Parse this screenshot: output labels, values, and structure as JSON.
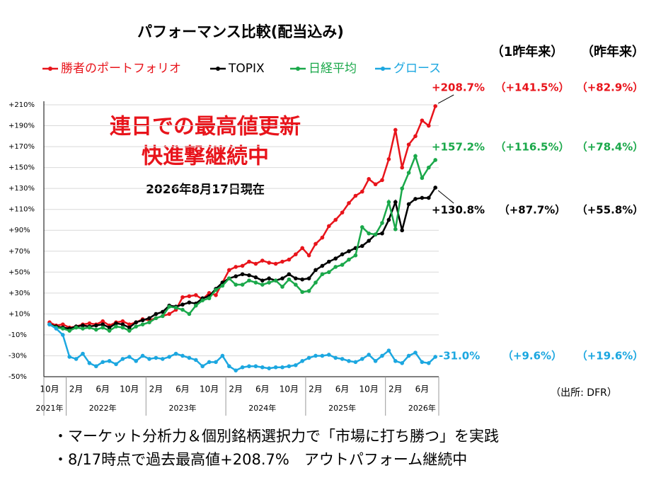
{
  "chart_data": {
    "type": "line",
    "title": "パフォーマンス比較(配当込み)",
    "column_headers": [
      "（1昨年来）",
      "（昨年来）"
    ],
    "annotations": [
      "連日での最高値更新",
      "快進撃継続中",
      "2026年8月17日現在"
    ],
    "source": "（出所: DFR）",
    "notes": [
      "・マーケット分析力＆個別銘柄選択力で「市場に打ち勝つ」を実践",
      "・8/17時点で過去最高値+208.7%　アウトパフォーム継続中"
    ],
    "categories": [
      "10月",
      null,
      null,
      null,
      "2月",
      null,
      null,
      null,
      "6月",
      null,
      null,
      null,
      "10月",
      null,
      null,
      null,
      "2月",
      null,
      null,
      null,
      "6月",
      null,
      null,
      null,
      "10月",
      null,
      null,
      null,
      "2月",
      null,
      null,
      null,
      "6月",
      null,
      null,
      null,
      "10月",
      null,
      null,
      null,
      "2月",
      null,
      null,
      null,
      "6月",
      null,
      null,
      null,
      "10月",
      null,
      null,
      null,
      "2月",
      null,
      null,
      null,
      "6月",
      null,
      null
    ],
    "category_groups": [
      "2021年",
      null,
      null,
      null,
      null,
      null,
      null,
      null,
      "2022年",
      null,
      null,
      null,
      null,
      null,
      null,
      null,
      null,
      null,
      null,
      null,
      "2023年",
      null,
      null,
      null,
      null,
      null,
      null,
      null,
      null,
      null,
      null,
      null,
      "2024年",
      null,
      null,
      null,
      null,
      null,
      null,
      null,
      null,
      null,
      null,
      null,
      "2025年",
      null,
      null,
      null,
      null,
      null,
      null,
      null,
      null,
      null,
      null,
      null,
      "2026年",
      null,
      null
    ],
    "ylim": [
      -50,
      210
    ],
    "yticks": [
      {
        "value": 210,
        "label": "+210%"
      },
      {
        "value": 190,
        "label": "+190%"
      },
      {
        "value": 170,
        "label": "+170%"
      },
      {
        "value": 150,
        "label": "+150%"
      },
      {
        "value": 130,
        "label": "+130%"
      },
      {
        "value": 110,
        "label": "+110%"
      },
      {
        "value": 90,
        "label": "+90%"
      },
      {
        "value": 70,
        "label": "+70%"
      },
      {
        "value": 50,
        "label": "+50%"
      },
      {
        "value": 30,
        "label": "+30%"
      },
      {
        "value": 10,
        "label": "+10%"
      },
      {
        "value": -10,
        "label": "-10%"
      },
      {
        "value": -30,
        "label": "-30%"
      },
      {
        "value": -50,
        "label": "-50%"
      }
    ],
    "grid": true,
    "series": [
      {
        "name": "勝者のポートフォリオ",
        "color": "#e8141b",
        "since_1yr": "（+141.5%）",
        "ytd": "（+82.9%）",
        "values": [
          2,
          -1,
          0,
          -3,
          -2,
          0,
          1,
          0,
          3,
          -1,
          2,
          3,
          0,
          2,
          5,
          4,
          6,
          8,
          10,
          14,
          26,
          27,
          28,
          24,
          30,
          28,
          40,
          52,
          55,
          56,
          60,
          58,
          61,
          59,
          58,
          60,
          62,
          67,
          73,
          66,
          77,
          83,
          94,
          100,
          107,
          116,
          123,
          127,
          139,
          134,
          138,
          158,
          186,
          150,
          172,
          180,
          195,
          190,
          208.7
        ],
        "value_labels": [
          null,
          null,
          null,
          null,
          null,
          null,
          null,
          null,
          null,
          null,
          null,
          null,
          null,
          null,
          null,
          null,
          null,
          null,
          null,
          null,
          null,
          null,
          null,
          null,
          null,
          null,
          null,
          null,
          null,
          null,
          null,
          null,
          null,
          null,
          null,
          null,
          null,
          null,
          null,
          null,
          null,
          null,
          null,
          null,
          null,
          null,
          null,
          null,
          null,
          null,
          null,
          null,
          null,
          null,
          null,
          null,
          null,
          null,
          "+208.7%"
        ]
      },
      {
        "name": "TOPIX",
        "color": "#000000",
        "since_1yr": "（+87.7%）",
        "ytd": "（+55.8%）",
        "values": [
          0,
          -2,
          -3,
          -4,
          -2,
          -1,
          -2,
          -1,
          0,
          -3,
          1,
          0,
          -3,
          2,
          4,
          6,
          10,
          12,
          18,
          17,
          19,
          21,
          20,
          25,
          27,
          34,
          40,
          44,
          46,
          48,
          47,
          45,
          42,
          44,
          42,
          44,
          48,
          44,
          43,
          44,
          52,
          56,
          60,
          63,
          67,
          70,
          73,
          75,
          80,
          86,
          87,
          100,
          117,
          90,
          115,
          120,
          121,
          121,
          130.8
        ],
        "value_labels": [
          null,
          null,
          null,
          null,
          null,
          null,
          null,
          null,
          null,
          null,
          null,
          null,
          null,
          null,
          null,
          null,
          null,
          null,
          null,
          null,
          null,
          null,
          null,
          null,
          null,
          null,
          null,
          null,
          null,
          null,
          null,
          null,
          null,
          null,
          null,
          null,
          null,
          null,
          null,
          null,
          null,
          null,
          null,
          null,
          null,
          null,
          null,
          null,
          null,
          null,
          null,
          null,
          null,
          null,
          null,
          null,
          null,
          null,
          "+130.8%"
        ]
      },
      {
        "name": "日経平均",
        "color": "#1aa84a",
        "since_1yr": "（+116.5%）",
        "ytd": "（+78.4%）",
        "values": [
          0,
          -3,
          -4,
          -6,
          -3,
          -4,
          -3,
          -5,
          -3,
          -6,
          -2,
          -3,
          -6,
          -2,
          0,
          2,
          6,
          8,
          17,
          16,
          14,
          10,
          18,
          23,
          25,
          33,
          37,
          44,
          38,
          38,
          42,
          40,
          38,
          40,
          42,
          36,
          43,
          38,
          31,
          32,
          40,
          48,
          50,
          55,
          57,
          62,
          66,
          93,
          87,
          86,
          97,
          117,
          91,
          130,
          145,
          161,
          140,
          150,
          157.2
        ],
        "value_labels": [
          null,
          null,
          null,
          null,
          null,
          null,
          null,
          null,
          null,
          null,
          null,
          null,
          null,
          null,
          null,
          null,
          null,
          null,
          null,
          null,
          null,
          null,
          null,
          null,
          null,
          null,
          null,
          null,
          null,
          null,
          null,
          null,
          null,
          null,
          null,
          null,
          null,
          null,
          null,
          null,
          null,
          null,
          null,
          null,
          null,
          null,
          null,
          null,
          null,
          null,
          null,
          null,
          null,
          null,
          null,
          null,
          null,
          null,
          "+157.2%"
        ]
      },
      {
        "name": "グロース",
        "color": "#1ca7e0",
        "since_1yr": "（+9.6%）",
        "ytd": "（+19.6%）",
        "values": [
          0,
          -4,
          -10,
          -31,
          -33,
          -28,
          -37,
          -40,
          -36,
          -35,
          -38,
          -33,
          -31,
          -35,
          -30,
          -33,
          -32,
          -33,
          -31,
          -28,
          -30,
          -32,
          -34,
          -40,
          -36,
          -36,
          -30,
          -40,
          -44,
          -41,
          -40,
          -40,
          -41,
          -42,
          -41,
          -41,
          -40,
          -39,
          -35,
          -32,
          -30,
          -30,
          -29,
          -32,
          -33,
          -35,
          -36,
          -33,
          -29,
          -35,
          -30,
          -25,
          -35,
          -37,
          -30,
          -27,
          -36,
          -37,
          -31
        ],
        "value_labels": [
          null,
          null,
          null,
          null,
          null,
          null,
          null,
          null,
          null,
          null,
          null,
          null,
          null,
          null,
          null,
          null,
          null,
          null,
          null,
          null,
          null,
          null,
          null,
          null,
          null,
          null,
          null,
          null,
          null,
          null,
          null,
          null,
          null,
          null,
          null,
          null,
          null,
          null,
          null,
          null,
          null,
          null,
          null,
          null,
          null,
          null,
          null,
          null,
          null,
          null,
          null,
          null,
          null,
          null,
          null,
          null,
          null,
          null,
          "-31.0%"
        ]
      }
    ]
  }
}
